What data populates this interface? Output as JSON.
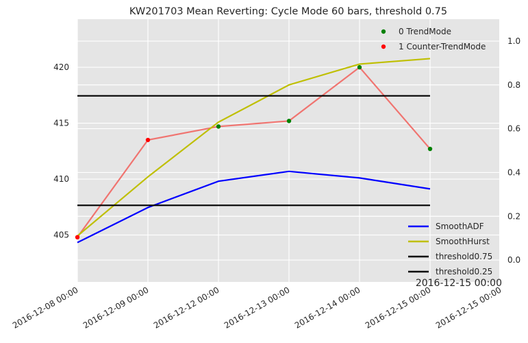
{
  "chart_data": {
    "type": "line",
    "title": "KW201703 Mean Reverting: Cycle Mode 60 bars, threshold 0.75",
    "x": [
      "2016-12-08 00:00",
      "2016-12-09 00:00",
      "2016-12-12 00:00",
      "2016-12-13 00:00",
      "2016-12-14 00:00",
      "2016-12-15 00:00"
    ],
    "x_tick_labels": [
      "2016-12-08 00:00",
      "2016-12-09 00:00",
      "2016-12-12 00:00",
      "2016-12-13 00:00",
      "2016-12-14 00:00",
      "2016-12-15 00:00",
      "2016-12-15 00:00"
    ],
    "corner_label": "2016-12-15 00:00",
    "left_axis": {
      "ylim": [
        400.8,
        424.3
      ],
      "ticks": [
        405,
        410,
        415,
        420
      ],
      "price": [
        404.8,
        413.5,
        414.7,
        415.2,
        420.0,
        412.7
      ],
      "price_color": "#f07470",
      "mode": [
        1,
        1,
        0,
        0,
        0,
        0
      ],
      "mode_colors": {
        "0": "#008000",
        "1": "#ff0000"
      }
    },
    "right_axis": {
      "ylim": [
        -0.1,
        1.1
      ],
      "ticks": [
        "0.0",
        "0.2",
        "0.4",
        "0.6",
        "0.8",
        "1.0"
      ],
      "series": [
        {
          "name": "SmoothADF",
          "color": "#0000ff",
          "values": [
            0.08,
            0.24,
            0.36,
            0.405,
            0.375,
            0.325
          ]
        },
        {
          "name": "SmoothHurst",
          "color": "#bfbf00",
          "values": [
            0.11,
            0.38,
            0.63,
            0.8,
            0.895,
            0.92
          ]
        },
        {
          "name": "threshold0.75",
          "color": "#000000",
          "values": [
            0.75,
            0.75,
            0.75,
            0.75,
            0.75,
            0.75
          ]
        },
        {
          "name": "threshold0.25",
          "color": "#000000",
          "values": [
            0.25,
            0.25,
            0.25,
            0.25,
            0.25,
            0.25
          ]
        }
      ]
    },
    "legend_top": [
      {
        "label": "0 TrendMode",
        "color": "#008000"
      },
      {
        "label": "1 Counter-TrendMode",
        "color": "#ff0000"
      }
    ],
    "legend_top_placement": "top-right",
    "legend_bottom_placement": "bottom-right",
    "grid": true,
    "background": "#e5e5e5"
  }
}
